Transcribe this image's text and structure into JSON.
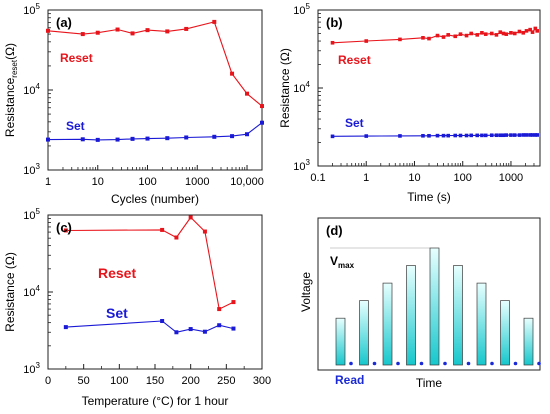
{
  "colors": {
    "reset": "#e8141b",
    "set": "#1a1ad6",
    "axis": "#222222",
    "bar_top": "#e8ffff",
    "bar_bottom": "#16c7cc",
    "bar_stroke": "#3a3a3a",
    "read_dot": "#1a2ad6"
  },
  "chart_data": [
    {
      "type": "line",
      "panel_label": "(a)",
      "xlabel": "Cycles (number)",
      "ylabel_main": "Resistance",
      "ylabel_sub": "reset",
      "ylabel_unit": "(Ω)",
      "xscale": "log",
      "yscale": "log",
      "xlim": [
        1,
        20000
      ],
      "ylim": [
        1000,
        100000
      ],
      "xticks": [
        {
          "value": 1,
          "label": "1"
        },
        {
          "value": 10,
          "label": "10"
        },
        {
          "value": 100,
          "label": "100"
        },
        {
          "value": 1000,
          "label": "1000"
        },
        {
          "value": 10000,
          "label": "10,000"
        }
      ],
      "yticks": [
        {
          "value": 1000,
          "label": "10",
          "exp": "3"
        },
        {
          "value": 10000,
          "label": "10",
          "exp": "4"
        },
        {
          "value": 100000,
          "label": "10",
          "exp": "5"
        }
      ],
      "series": [
        {
          "name": "Reset",
          "color_key": "reset",
          "x": [
            1,
            5,
            10,
            25,
            50,
            100,
            250,
            600,
            2200,
            5000,
            10000,
            20000
          ],
          "values": [
            55000,
            50000,
            52000,
            57000,
            51000,
            56000,
            54000,
            58000,
            71000,
            16000,
            9000,
            6300
          ]
        },
        {
          "name": "Set",
          "color_key": "set",
          "x": [
            1,
            5,
            10,
            25,
            50,
            100,
            250,
            600,
            2200,
            5000,
            10000,
            20000
          ],
          "values": [
            2400,
            2420,
            2380,
            2400,
            2450,
            2470,
            2500,
            2550,
            2600,
            2650,
            2800,
            3900
          ]
        }
      ]
    },
    {
      "type": "line",
      "panel_label": "(b)",
      "xlabel": "Time (s)",
      "ylabel": "Resistance (Ω)",
      "xscale": "log",
      "yscale": "log",
      "xlim": [
        0.1,
        4000
      ],
      "ylim": [
        1000,
        100000
      ],
      "xticks": [
        {
          "value": 0.1,
          "label": "0.1"
        },
        {
          "value": 1,
          "label": "1"
        },
        {
          "value": 10,
          "label": "10"
        },
        {
          "value": 100,
          "label": "100"
        },
        {
          "value": 1000,
          "label": "1000"
        }
      ],
      "yticks": [
        {
          "value": 1000,
          "label": "10",
          "exp": "3"
        },
        {
          "value": 10000,
          "label": "10",
          "exp": "4"
        },
        {
          "value": 100000,
          "label": "10",
          "exp": "5"
        }
      ],
      "series": [
        {
          "name": "Reset",
          "color_key": "reset",
          "x": [
            0.2,
            1,
            5,
            15,
            20,
            30,
            40,
            50,
            70,
            90,
            120,
            150,
            200,
            250,
            300,
            400,
            500,
            600,
            700,
            800,
            1000,
            1200,
            1500,
            1800,
            2100,
            2500,
            2800,
            3200,
            3500
          ],
          "values": [
            38000,
            40000,
            42000,
            44000,
            43000,
            47000,
            45000,
            48000,
            46000,
            49000,
            47000,
            50000,
            48000,
            51000,
            49000,
            50000,
            48000,
            52000,
            50000,
            49000,
            51000,
            50000,
            53000,
            51000,
            54000,
            56000,
            52000,
            58000,
            54000
          ]
        },
        {
          "name": "Set",
          "color_key": "set",
          "x": [
            0.2,
            1,
            5,
            15,
            20,
            30,
            40,
            50,
            70,
            90,
            120,
            150,
            200,
            250,
            300,
            400,
            500,
            600,
            700,
            800,
            1000,
            1200,
            1500,
            1800,
            2100,
            2500,
            2800,
            3200,
            3500
          ],
          "values": [
            2400,
            2420,
            2430,
            2440,
            2440,
            2450,
            2450,
            2450,
            2460,
            2460,
            2460,
            2470,
            2470,
            2470,
            2470,
            2480,
            2480,
            2480,
            2480,
            2490,
            2490,
            2490,
            2490,
            2500,
            2500,
            2500,
            2500,
            2500,
            2500
          ]
        }
      ]
    },
    {
      "type": "line",
      "panel_label": "(c)",
      "xlabel": "Temperature (°C) for 1 hour",
      "ylabel": "Resistance (Ω)",
      "xscale": "linear",
      "yscale": "log",
      "xlim": [
        0,
        300
      ],
      "ylim": [
        1000,
        100000
      ],
      "xticks": [
        {
          "value": 0,
          "label": "0"
        },
        {
          "value": 50,
          "label": "50"
        },
        {
          "value": 100,
          "label": "100"
        },
        {
          "value": 150,
          "label": "150"
        },
        {
          "value": 200,
          "label": "200"
        },
        {
          "value": 250,
          "label": "250"
        },
        {
          "value": 300,
          "label": "300"
        }
      ],
      "yticks": [
        {
          "value": 1000,
          "label": "10",
          "exp": "3"
        },
        {
          "value": 10000,
          "label": "10",
          "exp": "4"
        },
        {
          "value": 100000,
          "label": "10",
          "exp": "5"
        }
      ],
      "series": [
        {
          "name": "Reset",
          "color_key": "reset",
          "x": [
            25,
            160,
            180,
            200,
            220,
            240,
            260
          ],
          "values": [
            63000,
            64000,
            51000,
            93000,
            61000,
            6000,
            7400
          ]
        },
        {
          "name": "Set",
          "color_key": "set",
          "x": [
            25,
            160,
            180,
            200,
            220,
            240,
            260
          ],
          "values": [
            3500,
            4200,
            3000,
            3300,
            3050,
            3700,
            3350
          ]
        }
      ]
    },
    {
      "type": "bar",
      "panel_label": "(d)",
      "xlabel": "Time",
      "ylabel": "Voltage",
      "vmax_label": "V",
      "vmax_sub": "max",
      "read_label": "Read",
      "values": [
        0.4,
        0.55,
        0.7,
        0.85,
        1.0,
        0.85,
        0.7,
        0.55,
        0.4
      ],
      "ylim": [
        0,
        1.15
      ]
    }
  ]
}
